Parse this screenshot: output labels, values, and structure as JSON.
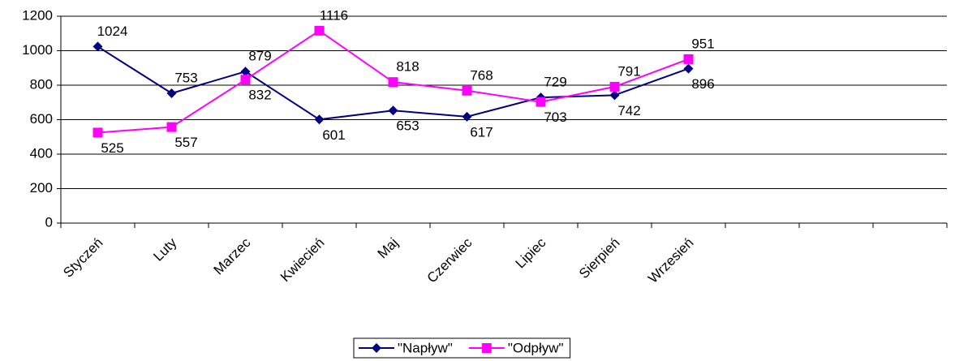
{
  "chart_data": {
    "type": "line",
    "categories": [
      "Styczeń",
      "Luty",
      "Marzec",
      "Kwiecień",
      "Maj",
      "Czerwiec",
      "Lipiec",
      "Sierpień",
      "Wrzesień",
      null,
      null,
      null
    ],
    "series": [
      {
        "name": "\"Napływ\"",
        "color": "#000080",
        "marker": "diamond",
        "values": [
          1024,
          753,
          879,
          601,
          653,
          617,
          729,
          742,
          896,
          null,
          null,
          null
        ]
      },
      {
        "name": "\"Odpływ\"",
        "color": "#ff00ff",
        "marker": "square",
        "values": [
          525,
          557,
          832,
          1116,
          818,
          768,
          703,
          791,
          951,
          null,
          null,
          null
        ]
      }
    ],
    "ylim": [
      0,
      1200
    ],
    "yticks": [
      0,
      200,
      400,
      600,
      800,
      1000,
      1200
    ],
    "grid": true,
    "legend": "bottom"
  }
}
